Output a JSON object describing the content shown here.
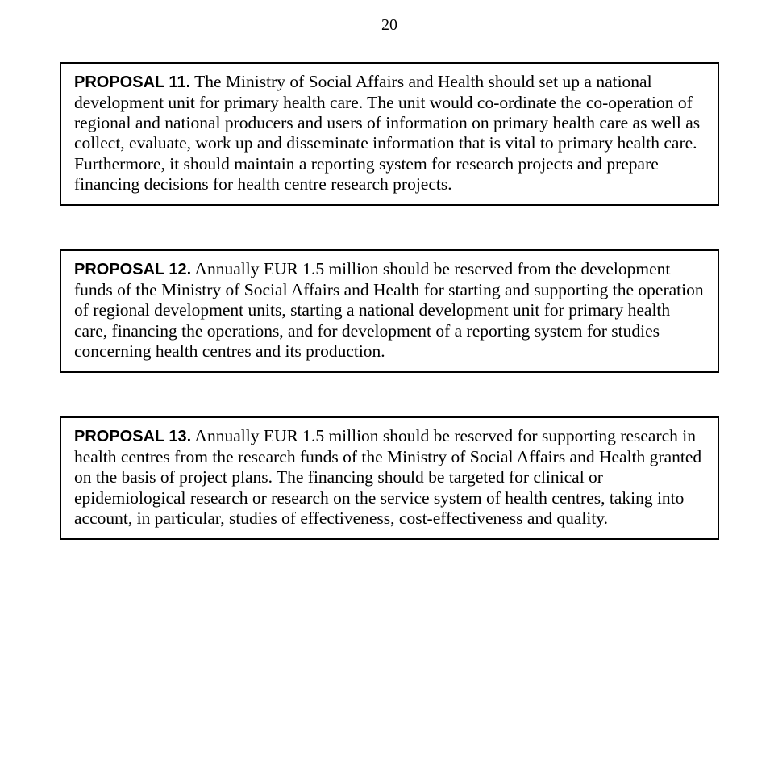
{
  "page_number": "20",
  "boxes": [
    {
      "label": "PROPOSAL 11.",
      "text": " The Ministry of Social Affairs and Health should set up a national development unit for primary health care. The unit would co-ordinate the co-operation of regional and national producers and users of information on primary health care as well as collect, evaluate, work up and disseminate information that is vital to primary health care. Furthermore, it should maintain a reporting system for research projects and prepare financing decisions for health centre research projects."
    },
    {
      "label": "PROPOSAL 12.",
      "text": " Annually EUR 1.5 million should be reserved from the development funds of the Ministry of Social Affairs and Health for starting and supporting the operation of regional development units, starting a national development unit for primary health care, financing the operations, and for development of a reporting system for studies concerning health centres and its production."
    },
    {
      "label": "PROPOSAL 13.",
      "text": " Annually EUR 1.5 million should be reserved for supporting research in health centres from the research funds of the Ministry of Social Affairs and Health granted on the basis of project plans. The financing should be targeted for clinical or epidemiological research or research on the service system of health centres, taking into account, in particular, studies of effectiveness, cost-effectiveness and quality."
    }
  ]
}
